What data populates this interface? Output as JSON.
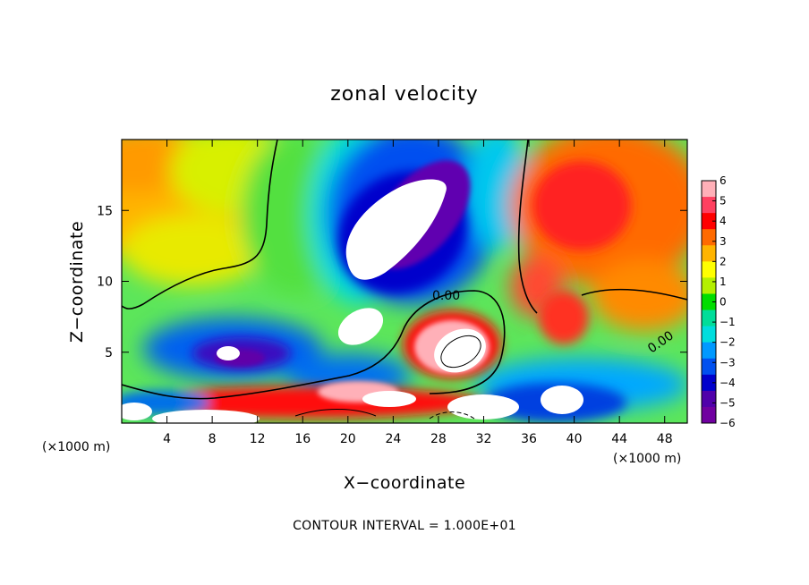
{
  "chart_data": {
    "type": "heatmap",
    "title": "zonal velocity",
    "xlabel": "X−coordinate",
    "ylabel": "Z−coordinate",
    "x_unit_left": "(×1000 m)",
    "x_unit_right": "(×1000 m)",
    "xlim": [
      0,
      50
    ],
    "ylim": [
      0,
      20
    ],
    "x_ticks": [
      4,
      8,
      12,
      16,
      20,
      24,
      28,
      32,
      36,
      40,
      44,
      48
    ],
    "x_tick_labels": [
      "4",
      "8",
      "12",
      "16",
      "20",
      "24",
      "28",
      "32",
      "36",
      "40",
      "44",
      "48"
    ],
    "y_ticks": [
      5,
      10,
      15
    ],
    "y_tick_labels": [
      "5",
      "10",
      "15"
    ],
    "contour_label": "0.00",
    "colorbar": {
      "min": -6,
      "max": 6,
      "tick_labels": [
        "6",
        "5",
        "4",
        "3",
        "2",
        "1",
        "0",
        "−1",
        "−2",
        "−3",
        "−4",
        "−5",
        "−6"
      ],
      "colors": [
        "#ffb0b8",
        "#ff4060",
        "#ff0000",
        "#ff6a00",
        "#ffb400",
        "#ffff00",
        "#b4f000",
        "#00dd00",
        "#00dd99",
        "#00dddd",
        "#0099ff",
        "#0050f0",
        "#0000cc",
        "#5000aa",
        "#7000a0"
      ]
    },
    "fields": [
      {
        "name": "upper-left-orange",
        "x": 2,
        "z": 15,
        "value": 3
      },
      {
        "name": "upper-left-yellow",
        "x": 8,
        "z": 13,
        "value": 1.5
      },
      {
        "name": "upper-mid-green",
        "x": 13,
        "z": 16,
        "value": 0.5
      },
      {
        "name": "central-blue-core",
        "x": 25,
        "z": 13,
        "value": -5
      },
      {
        "name": "white-core-upper",
        "x": 24,
        "z": 14.5,
        "value": -7
      },
      {
        "name": "white-core-mid",
        "x": 21,
        "z": 6.5,
        "value": -7
      },
      {
        "name": "red-core",
        "x": 29,
        "z": 5.5,
        "value": 5
      },
      {
        "name": "upper-right-red",
        "x": 40,
        "z": 14,
        "value": 4.5
      },
      {
        "name": "right-orange",
        "x": 46,
        "z": 8,
        "value": 3
      },
      {
        "name": "lower-left-blue",
        "x": 9,
        "z": 4.8,
        "value": -5
      },
      {
        "name": "bottom-red-band",
        "x": 20,
        "z": 1.5,
        "value": 5
      },
      {
        "name": "lower-right-white",
        "x": 39,
        "z": 1.8,
        "value": -7
      }
    ],
    "contour_interval_note": "CONTOUR INTERVAL = 1.000E+01",
    "grid": false,
    "legend": "colorbar-right"
  }
}
